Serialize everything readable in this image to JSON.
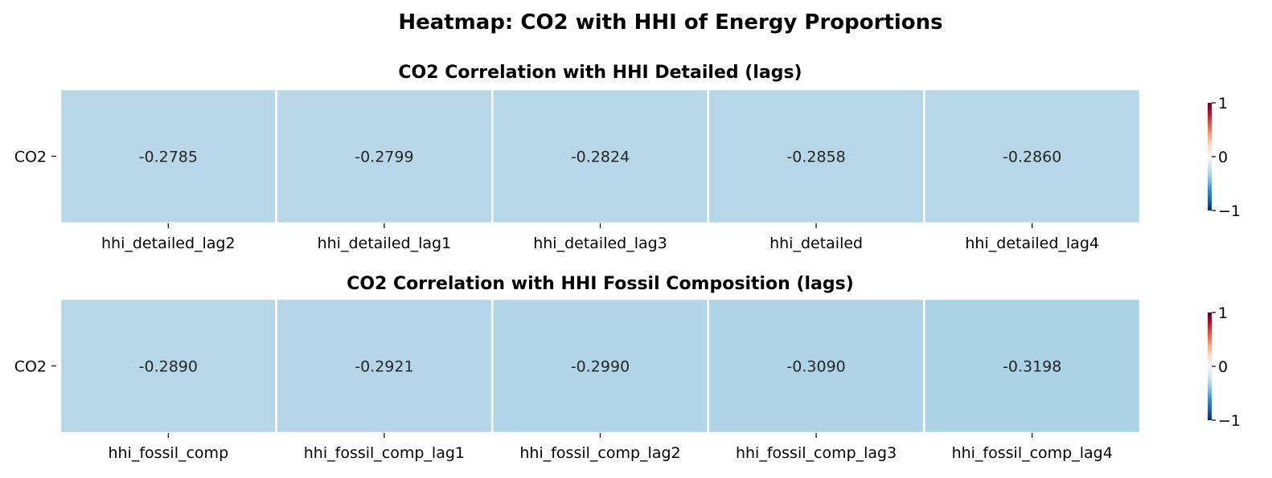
{
  "figure_title": "Heatmap: CO2 with HHI of Energy Proportions",
  "chart_data": [
    {
      "type": "heatmap",
      "title": "CO2 Correlation with HHI Detailed (lags)",
      "rows": [
        "CO2"
      ],
      "columns": [
        "hhi_detailed_lag2",
        "hhi_detailed_lag1",
        "hhi_detailed_lag3",
        "hhi_detailed",
        "hhi_detailed_lag4"
      ],
      "values": [
        [
          -0.2785,
          -0.2799,
          -0.2824,
          -0.2858,
          -0.286
        ]
      ],
      "value_labels": [
        "-0.2785",
        "-0.2799",
        "-0.2824",
        "-0.2858",
        "-0.2860"
      ],
      "colorbar": {
        "min": -1,
        "max": 1,
        "ticks": [
          1,
          0,
          -1
        ],
        "tick_labels": [
          "1",
          "0",
          "−1"
        ],
        "colormap": "RdBu_r"
      }
    },
    {
      "type": "heatmap",
      "title": "CO2 Correlation with HHI Fossil Composition (lags)",
      "rows": [
        "CO2"
      ],
      "columns": [
        "hhi_fossil_comp",
        "hhi_fossil_comp_lag1",
        "hhi_fossil_comp_lag2",
        "hhi_fossil_comp_lag3",
        "hhi_fossil_comp_lag4"
      ],
      "values": [
        [
          -0.289,
          -0.2921,
          -0.299,
          -0.309,
          -0.3198
        ]
      ],
      "value_labels": [
        "-0.2890",
        "-0.2921",
        "-0.2990",
        "-0.3090",
        "-0.3198"
      ],
      "colorbar": {
        "min": -1,
        "max": 1,
        "ticks": [
          1,
          0,
          -1
        ],
        "tick_labels": [
          "1",
          "0",
          "−1"
        ],
        "colormap": "RdBu_r"
      }
    }
  ]
}
